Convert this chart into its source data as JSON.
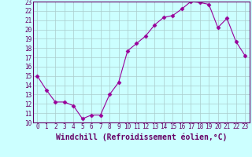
{
  "x": [
    0,
    1,
    2,
    3,
    4,
    5,
    6,
    7,
    8,
    9,
    10,
    11,
    12,
    13,
    14,
    15,
    16,
    17,
    18,
    19,
    20,
    21,
    22,
    23
  ],
  "y": [
    15.0,
    13.5,
    12.2,
    12.2,
    11.8,
    10.4,
    10.8,
    10.8,
    13.0,
    14.3,
    17.7,
    18.5,
    19.3,
    20.5,
    21.3,
    21.5,
    22.2,
    23.0,
    22.9,
    22.7,
    20.2,
    21.2,
    18.7,
    17.2
  ],
  "line_color": "#990099",
  "marker": "D",
  "marker_size": 2.5,
  "bg_color": "#ccffff",
  "grid_color": "#aacccc",
  "xlabel": "Windchill (Refroidissement éolien,°C)",
  "ylim": [
    10,
    23
  ],
  "xlim_min": -0.5,
  "xlim_max": 23.5,
  "yticks": [
    10,
    11,
    12,
    13,
    14,
    15,
    16,
    17,
    18,
    19,
    20,
    21,
    22,
    23
  ],
  "xticks": [
    0,
    1,
    2,
    3,
    4,
    5,
    6,
    7,
    8,
    9,
    10,
    11,
    12,
    13,
    14,
    15,
    16,
    17,
    18,
    19,
    20,
    21,
    22,
    23
  ],
  "tick_fontsize": 5.5,
  "xlabel_fontsize": 7,
  "label_color": "#660066",
  "spine_color": "#660066"
}
